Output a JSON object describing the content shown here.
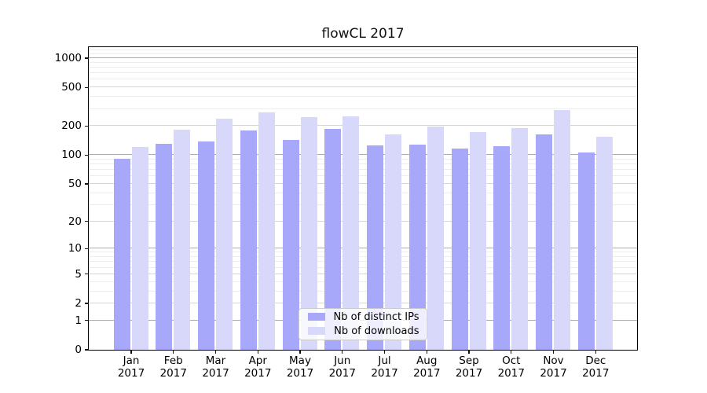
{
  "figure": {
    "background": "#ffffff",
    "plot_border_color": "#000000"
  },
  "chart_data": {
    "type": "bar",
    "title": "flowCL 2017",
    "categories": [
      "Jan 2017",
      "Feb 2017",
      "Mar 2017",
      "Apr 2017",
      "May 2017",
      "Jun 2017",
      "Jul 2017",
      "Aug 2017",
      "Sep 2017",
      "Oct 2017",
      "Nov 2017",
      "Dec 2017"
    ],
    "series": [
      {
        "name": "Nb of distinct IPs",
        "color": "#a8a8fa",
        "values": [
          90,
          129,
          136,
          179,
          143,
          184,
          125,
          127,
          115,
          123,
          161,
          105
        ]
      },
      {
        "name": "Nb of downloads",
        "color": "#d8d8fa",
        "values": [
          121,
          180,
          237,
          274,
          244,
          249,
          163,
          194,
          171,
          188,
          291,
          153
        ]
      }
    ],
    "xlabel": "",
    "ylabel": "",
    "yscale": "log1p",
    "yticks": [
      0,
      1,
      2,
      5,
      10,
      20,
      50,
      100,
      200,
      500,
      1000
    ],
    "ylim": [
      0,
      1300
    ],
    "grid": true,
    "legend_position": "lower center",
    "gridline_colors": {
      "major": "#ababab",
      "labeled_minor": "#d6d6d6",
      "minor": "#ededed"
    }
  }
}
